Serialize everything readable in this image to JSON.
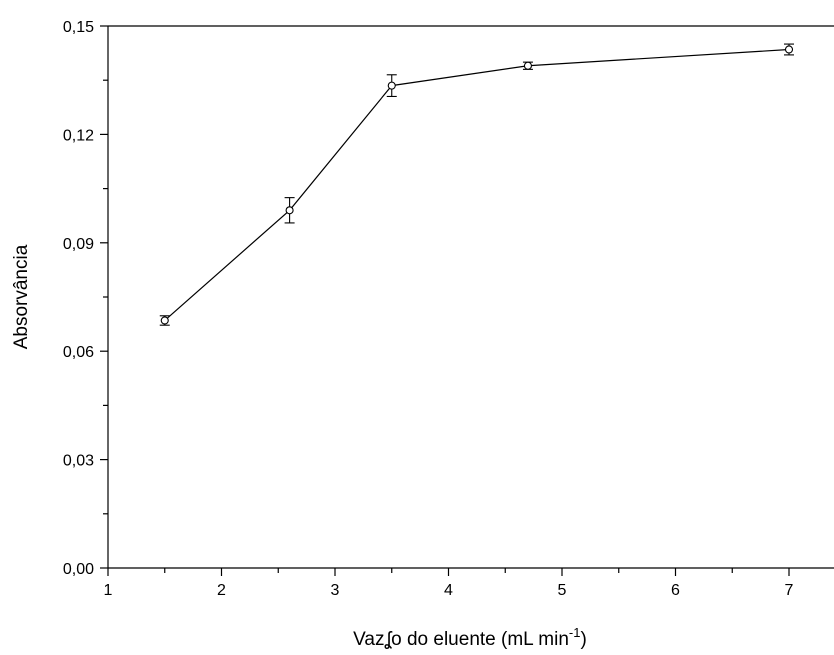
{
  "chart_data": {
    "type": "line",
    "xlabel_main": "Vazʆo do eluente (mL min",
    "xlabel_sup": "-1",
    "xlabel_close": ")",
    "ylabel": "Absorvância",
    "xlim": [
      1,
      7.4
    ],
    "ylim": [
      0,
      0.15
    ],
    "x_ticks": [
      "1",
      "2",
      "3",
      "4",
      "5",
      "6",
      "7"
    ],
    "y_ticks": [
      "0,00",
      "0,03",
      "0,06",
      "0,09",
      "0,12",
      "0,15"
    ],
    "series": [
      {
        "x": [
          1.5,
          2.6,
          3.5,
          4.7,
          7.0
        ],
        "y": [
          0.0685,
          0.099,
          0.1335,
          0.139,
          0.1435
        ],
        "err": [
          0.0013,
          0.0035,
          0.003,
          0.001,
          0.0015
        ]
      }
    ],
    "colors": {
      "line": "#000000",
      "marker_fill": "#ffffff"
    }
  }
}
